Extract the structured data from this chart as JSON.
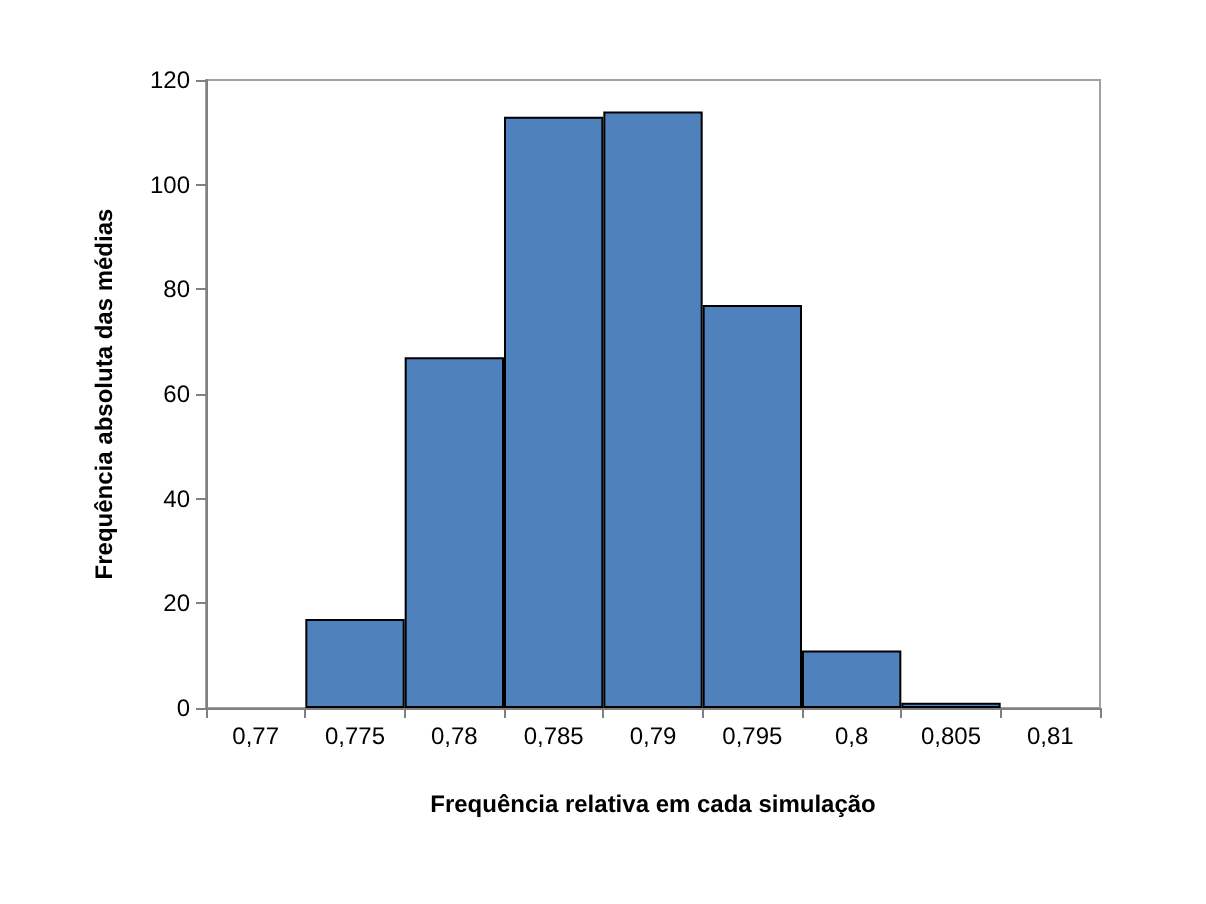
{
  "chart_data": {
    "type": "bar",
    "xlabel": "Frequência relativa em cada simulação",
    "ylabel": "Frequência absoluta das médias",
    "categories": [
      "0,77",
      "0,775",
      "0,78",
      "0,785",
      "0,79",
      "0,795",
      "0,8",
      "0,805",
      "0,81"
    ],
    "values": [
      0,
      17,
      67,
      113,
      114,
      77,
      11,
      1,
      0
    ],
    "color": "#4f81bd",
    "ylim": [
      0,
      120
    ],
    "yticks": [
      0,
      20,
      40,
      60,
      80,
      100,
      120
    ],
    "grid": false
  }
}
